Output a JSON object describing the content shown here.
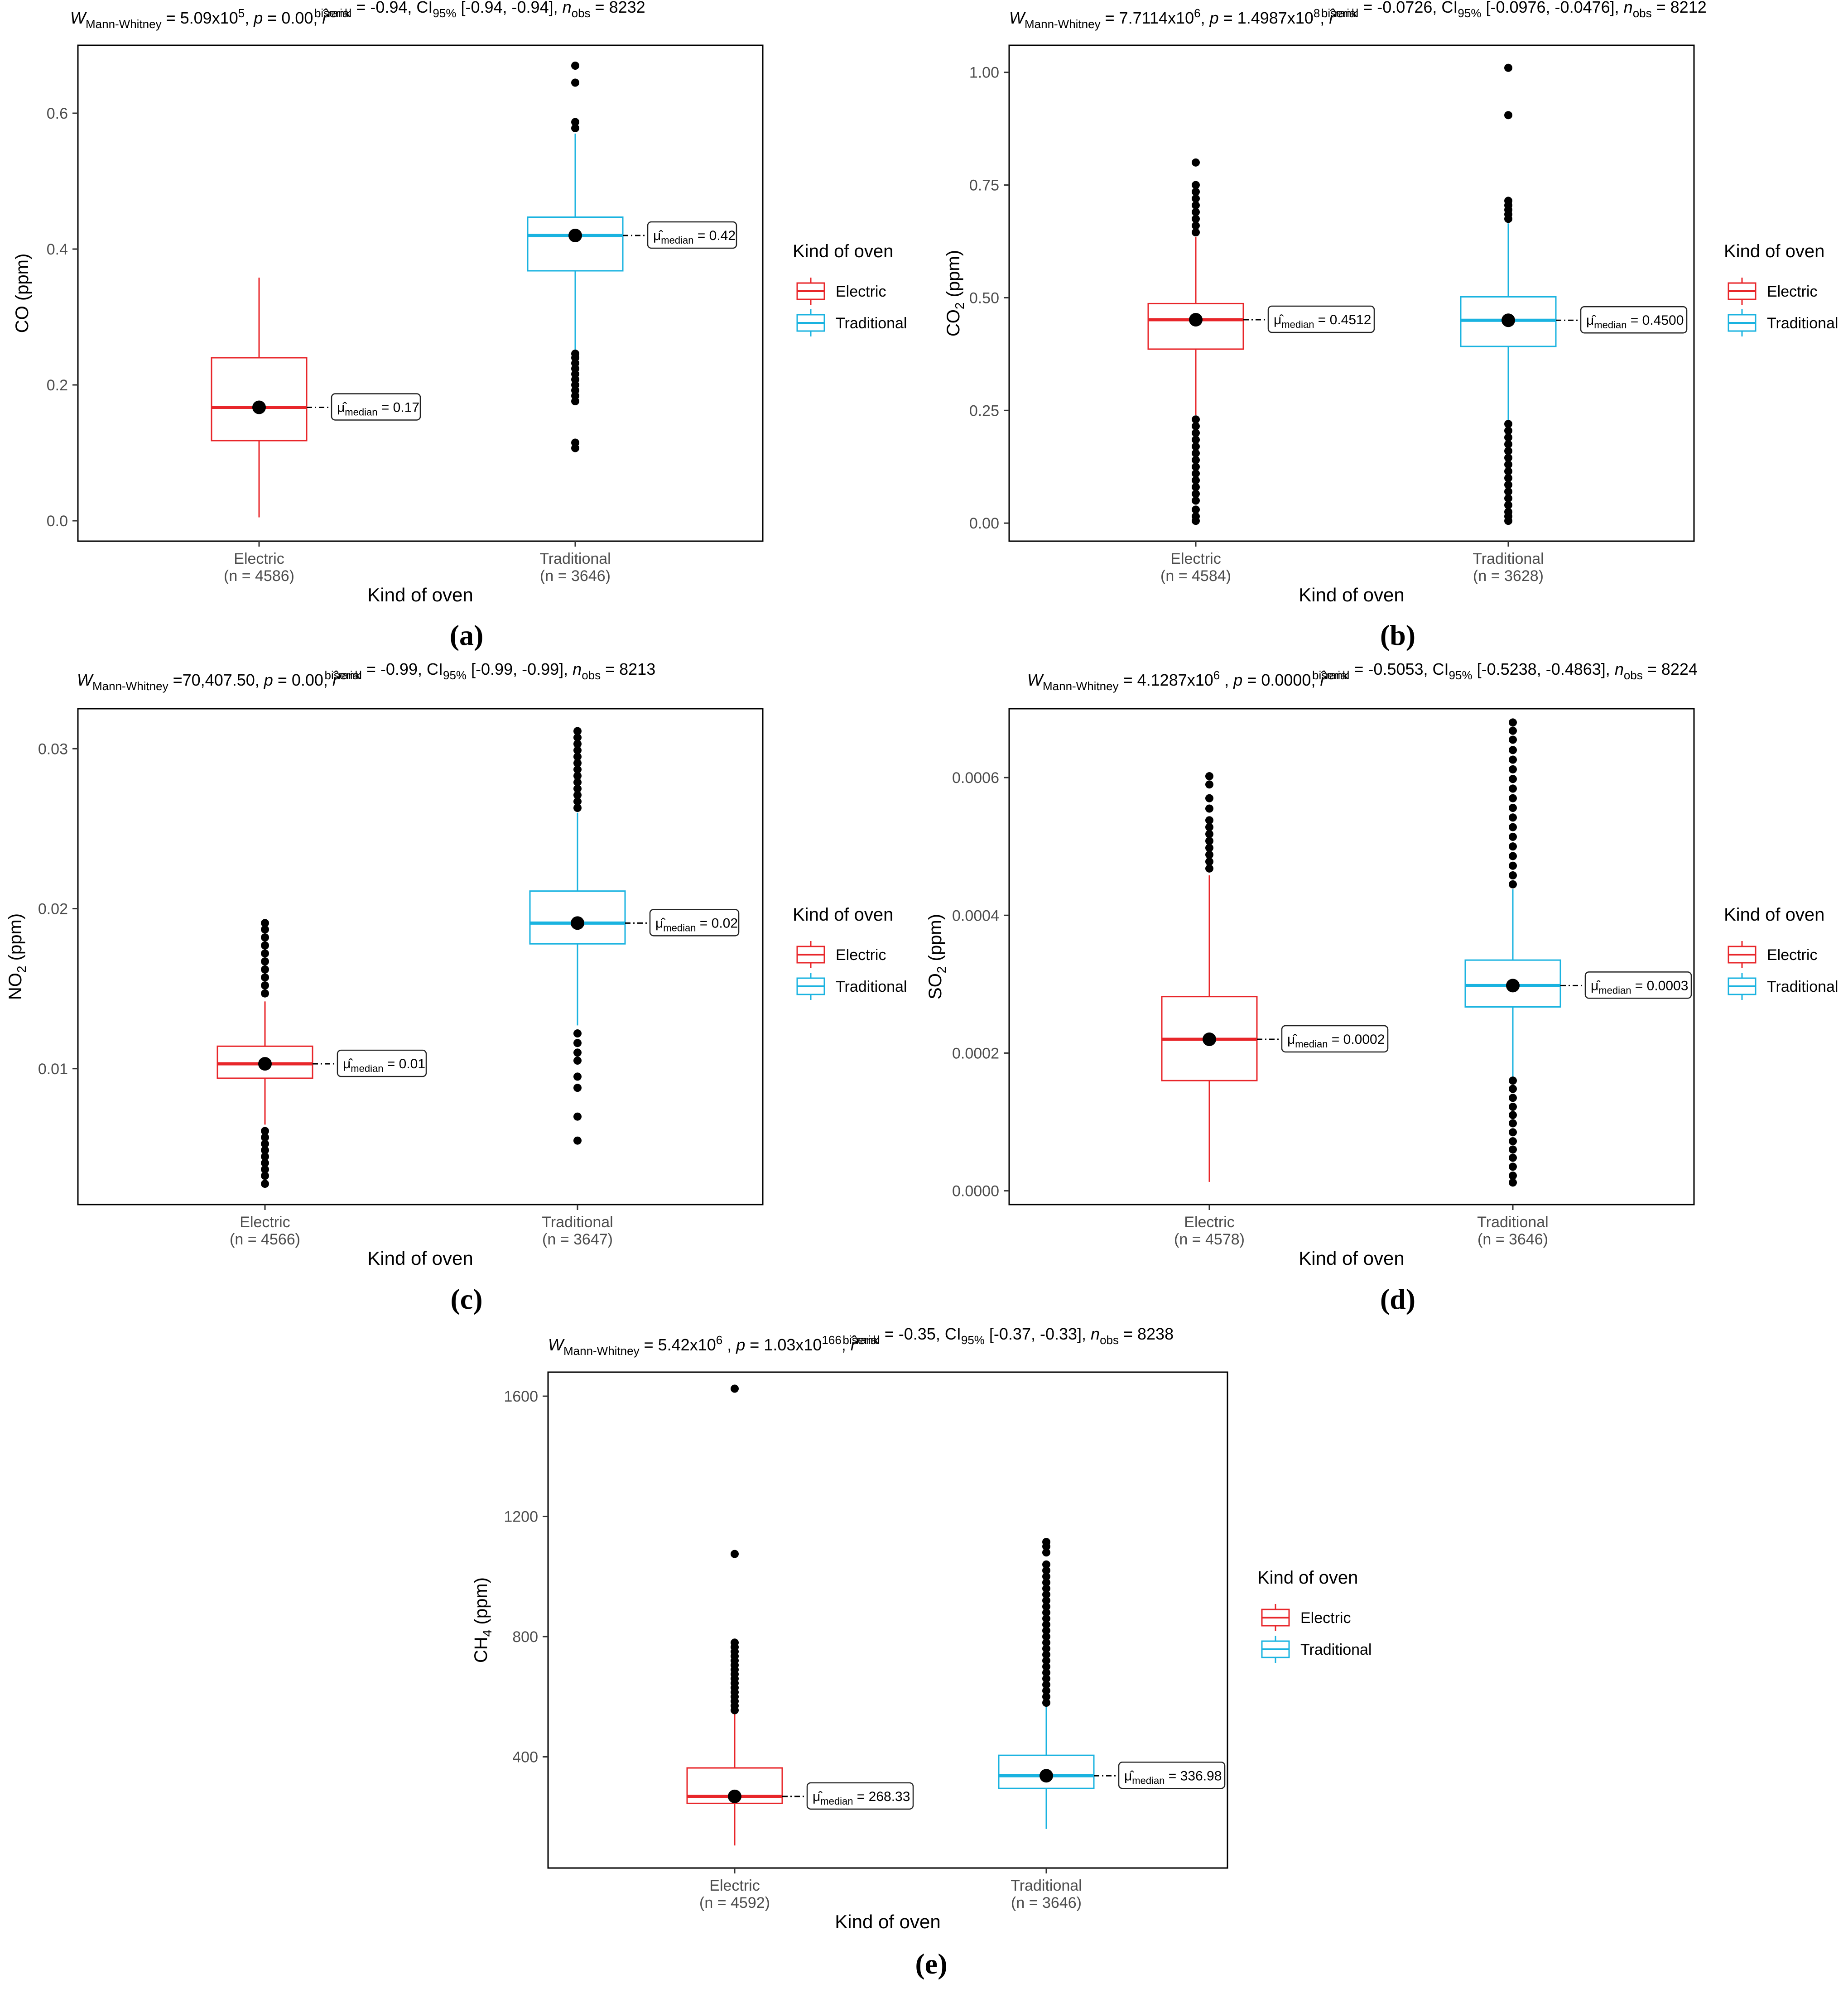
{
  "figure": {
    "legend_title": "Kind of oven",
    "colors": {
      "Electric": "#E8262A",
      "Traditional": "#1AB3E0",
      "point": "#000000",
      "axis": "#000000",
      "tick_text": "#4d4d4d"
    }
  },
  "chart_data": [
    {
      "panel": "a",
      "panel_label": "(a)",
      "type": "box",
      "title_parts": [
        "W",
        "Mann-Whitney",
        " = 5.09x10",
        "5",
        ", ",
        "p",
        " = 0.00, ",
        "r",
        "rank",
        "biserial",
        " = -0.94, CI",
        "95%",
        " [-0.94, -0.94], ",
        "n",
        "obs",
        " = 8232"
      ],
      "xlabel": "Kind of oven",
      "ylabel": "CO (ppm)",
      "ylim": [
        -0.03,
        0.7
      ],
      "yticks": [
        0.0,
        0.2,
        0.4,
        0.6
      ],
      "ytick_labels": [
        "0.0",
        "0.2",
        "0.4",
        "0.6"
      ],
      "categories": [
        "Electric",
        "Traditional"
      ],
      "n_labels": [
        "(n = 4586)",
        "(n = 3646)"
      ],
      "legend": [
        "Electric",
        "Traditional"
      ],
      "series": [
        {
          "name": "Electric",
          "q1": 0.118,
          "median": 0.167,
          "q3": 0.24,
          "whisker_low": 0.005,
          "whisker_high": 0.358,
          "mean_point": 0.167,
          "median_label": "0.17",
          "outliers": []
        },
        {
          "name": "Traditional",
          "q1": 0.368,
          "median": 0.42,
          "q3": 0.447,
          "whisker_low": 0.25,
          "whisker_high": 0.57,
          "mean_point": 0.42,
          "median_label": "0.42",
          "outliers": [
            0.107,
            0.115,
            0.176,
            0.184,
            0.192,
            0.2,
            0.208,
            0.216,
            0.224,
            0.232,
            0.24,
            0.246,
            0.578,
            0.587,
            0.645,
            0.67
          ]
        }
      ]
    },
    {
      "panel": "b",
      "panel_label": "(b)",
      "type": "box",
      "title_parts": [
        "W",
        "Mann-Whitney",
        " = 7.7114x10",
        "6",
        ", ",
        "p",
        " = 1.4987x10",
        "8",
        ", ",
        "r",
        "rank",
        "biserial",
        " = -0.0726, CI",
        "95%",
        " [-0.0976, -0.0476], ",
        "n",
        "obs",
        " = 8212"
      ],
      "xlabel": "Kind of oven",
      "ylabel": "CO2 (ppm)",
      "ylim": [
        -0.04,
        1.06
      ],
      "yticks": [
        0.0,
        0.25,
        0.5,
        0.75,
        1.0
      ],
      "ytick_labels": [
        "0.00",
        "0.25",
        "0.50",
        "0.75",
        "1.00"
      ],
      "categories": [
        "Electric",
        "Traditional"
      ],
      "n_labels": [
        "(n = 4584)",
        "(n = 3628)"
      ],
      "legend": [
        "Electric",
        "Traditional"
      ],
      "series": [
        {
          "name": "Electric",
          "q1": 0.386,
          "median": 0.4512,
          "q3": 0.487,
          "whisker_low": 0.24,
          "whisker_high": 0.635,
          "mean_point": 0.4512,
          "median_label": "0.4512",
          "outliers": [
            0.005,
            0.015,
            0.03,
            0.05,
            0.065,
            0.08,
            0.095,
            0.11,
            0.125,
            0.14,
            0.155,
            0.17,
            0.185,
            0.2,
            0.215,
            0.23,
            0.645,
            0.66,
            0.675,
            0.69,
            0.705,
            0.72,
            0.735,
            0.75,
            0.8
          ]
        },
        {
          "name": "Traditional",
          "q1": 0.392,
          "median": 0.45,
          "q3": 0.502,
          "whisker_low": 0.225,
          "whisker_high": 0.665,
          "mean_point": 0.45,
          "median_label": "0.4500",
          "outliers": [
            0.005,
            0.015,
            0.025,
            0.04,
            0.055,
            0.07,
            0.085,
            0.1,
            0.115,
            0.13,
            0.145,
            0.16,
            0.175,
            0.19,
            0.205,
            0.22,
            0.675,
            0.685,
            0.695,
            0.705,
            0.715,
            0.905,
            1.01
          ]
        }
      ]
    },
    {
      "panel": "c",
      "panel_label": "(c)",
      "type": "box",
      "title_parts": [
        "W",
        "Mann-Whitney",
        " =70,407.50, ",
        "p",
        " = 0.00, ",
        "r",
        "rank",
        "biserial",
        " = -0.99, CI",
        "95%",
        " [-0.99, -0.99], ",
        "n",
        "obs",
        " = 8213"
      ],
      "xlabel": "Kind of oven",
      "ylabel": "NO2 (ppm)",
      "ylim": [
        0.0015,
        0.0325
      ],
      "yticks": [
        0.01,
        0.02,
        0.03
      ],
      "ytick_labels": [
        "0.01",
        "0.02",
        "0.03"
      ],
      "categories": [
        "Electric",
        "Traditional"
      ],
      "n_labels": [
        "(n = 4566)",
        "(n = 3647)"
      ],
      "legend": [
        "Electric",
        "Traditional"
      ],
      "series": [
        {
          "name": "Electric",
          "q1": 0.0094,
          "median": 0.0103,
          "q3": 0.0114,
          "whisker_low": 0.0065,
          "whisker_high": 0.0142,
          "mean_point": 0.0103,
          "median_label": "0.01",
          "outliers": [
            0.0028,
            0.0033,
            0.0037,
            0.0041,
            0.0045,
            0.0049,
            0.0053,
            0.0057,
            0.0061,
            0.0147,
            0.0152,
            0.0157,
            0.0162,
            0.0167,
            0.0172,
            0.0177,
            0.0182,
            0.0187,
            0.0191
          ]
        },
        {
          "name": "Traditional",
          "q1": 0.0178,
          "median": 0.0191,
          "q3": 0.0211,
          "whisker_low": 0.0127,
          "whisker_high": 0.026,
          "mean_point": 0.0191,
          "median_label": "0.02",
          "outliers": [
            0.0055,
            0.007,
            0.0088,
            0.0095,
            0.0105,
            0.011,
            0.0116,
            0.0122,
            0.0263,
            0.0267,
            0.0271,
            0.0275,
            0.0279,
            0.0283,
            0.0287,
            0.0291,
            0.0295,
            0.0299,
            0.0303,
            0.0307,
            0.0311
          ]
        }
      ]
    },
    {
      "panel": "d",
      "panel_label": "(d)",
      "type": "box",
      "title_parts": [
        "W",
        "Mann-Whitney",
        " = 4.1287x10",
        "6",
        " , ",
        "p",
        " = 0.0000, ",
        "r",
        "rank",
        "biserial",
        " = -0.5053, CI",
        "95%",
        " [-0.5238, -0.4863], ",
        "n",
        "obs",
        " = 8224"
      ],
      "xlabel": "Kind of oven",
      "ylabel": "SO2 (ppm)",
      "ylim": [
        -2e-05,
        0.0007
      ],
      "yticks": [
        0.0,
        0.0002,
        0.0004,
        0.0006
      ],
      "ytick_labels": [
        "0.0000",
        "0.0002",
        "0.0004",
        "0.0006"
      ],
      "categories": [
        "Electric",
        "Traditional"
      ],
      "n_labels": [
        "(n = 4578)",
        "(n = 3646)"
      ],
      "legend": [
        "Electric",
        "Traditional"
      ],
      "series": [
        {
          "name": "Electric",
          "q1": 0.00016,
          "median": 0.00022,
          "q3": 0.000282,
          "whisker_low": 1.3e-05,
          "whisker_high": 0.000458,
          "mean_point": 0.00022,
          "median_label": "0.0002",
          "outliers": [
            0.000468,
            0.000478,
            0.000488,
            0.000498,
            0.000508,
            0.000518,
            0.000528,
            0.000538,
            0.000555,
            0.00057,
            0.00059,
            0.000602
          ]
        },
        {
          "name": "Traditional",
          "q1": 0.000267,
          "median": 0.000298,
          "q3": 0.000335,
          "whisker_low": 0.000165,
          "whisker_high": 0.000438,
          "mean_point": 0.000298,
          "median_label": "0.0003",
          "outliers": [
            1.2e-05,
            2.2e-05,
            3.5e-05,
            4.8e-05,
            6e-05,
            7.2e-05,
            8.5e-05,
            9.8e-05,
            0.00011,
            0.000122,
            0.000135,
            0.000148,
            0.00016,
            0.000445,
            0.000458,
            0.000472,
            0.000486,
            0.0005,
            0.000514,
            0.000528,
            0.000542,
            0.000556,
            0.00057,
            0.000584,
            0.000598,
            0.000612,
            0.000626,
            0.00064,
            0.000655,
            0.000668,
            0.00068
          ]
        }
      ]
    },
    {
      "panel": "e",
      "panel_label": "(e)",
      "type": "box",
      "title_parts": [
        "W",
        "Mann-Whitney",
        " = 5.42x10",
        "6",
        " , ",
        "p",
        " = 1.03x10",
        "166",
        ", ",
        "r",
        "rank",
        "biserial",
        " = -0.35, CI",
        "95%",
        " [-0.37, -0.33], ",
        "n",
        "obs",
        " = 8238"
      ],
      "xlabel": "Kind of oven",
      "ylabel": "CH4 (ppm)",
      "ylim": [
        30,
        1680
      ],
      "yticks": [
        400,
        800,
        1200,
        1600
      ],
      "ytick_labels": [
        "400",
        "800",
        "1200",
        "1600"
      ],
      "categories": [
        "Electric",
        "Traditional"
      ],
      "n_labels": [
        "(n = 4592)",
        "(n = 3646)"
      ],
      "legend": [
        "Electric",
        "Traditional"
      ],
      "series": [
        {
          "name": "Electric",
          "q1": 245,
          "median": 268.33,
          "q3": 363,
          "whisker_low": 105,
          "whisker_high": 545,
          "mean_point": 268.33,
          "median_label": "268.33",
          "outliers": [
            555,
            570,
            585,
            600,
            615,
            630,
            645,
            660,
            675,
            690,
            705,
            720,
            735,
            750,
            765,
            780,
            1075,
            1625
          ]
        },
        {
          "name": "Traditional",
          "q1": 295,
          "median": 336.98,
          "q3": 405,
          "whisker_low": 160,
          "whisker_high": 570,
          "mean_point": 336.98,
          "median_label": "336.98",
          "outliers": [
            580,
            600,
            620,
            640,
            660,
            680,
            700,
            720,
            740,
            760,
            780,
            800,
            820,
            840,
            860,
            880,
            900,
            920,
            940,
            960,
            980,
            1000,
            1020,
            1040,
            1080,
            1100,
            1115
          ]
        }
      ]
    }
  ]
}
